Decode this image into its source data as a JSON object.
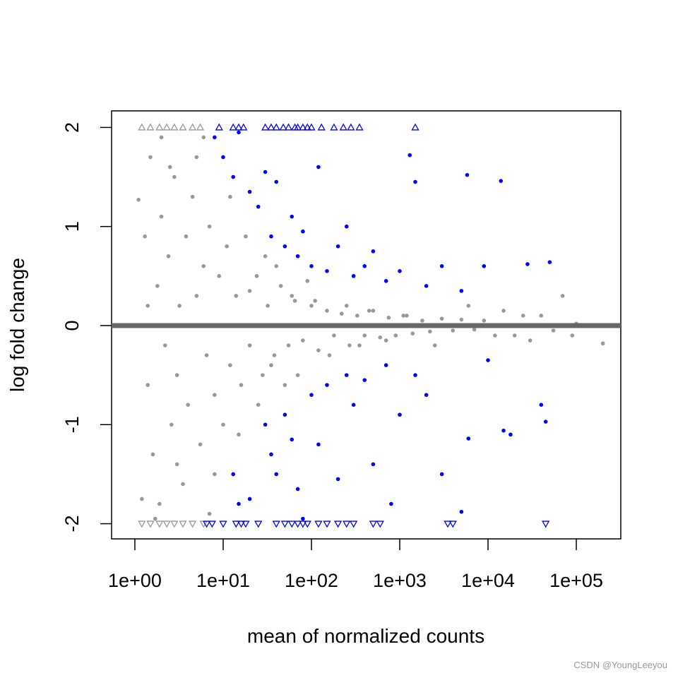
{
  "chart_data": {
    "type": "scatter",
    "x_label": "mean of normalized counts",
    "y_label": "log fold change",
    "watermark": "CSDN @YoungLeeyou",
    "x_log": true,
    "xlim": [
      0.545,
      319000
    ],
    "ylim": [
      -2.153,
      2.167
    ],
    "xticks": [
      {
        "value": 1,
        "label": "1e+00"
      },
      {
        "value": 10,
        "label": "1e+01"
      },
      {
        "value": 100,
        "label": "1e+02"
      },
      {
        "value": 1000,
        "label": "1e+03"
      },
      {
        "value": 10000,
        "label": "1e+04"
      },
      {
        "value": 100000,
        "label": "1e+05"
      }
    ],
    "yticks": [
      -2,
      -1,
      0,
      1,
      2
    ],
    "hline": {
      "value": 0,
      "color": "#666666"
    },
    "series": [
      {
        "color": "#999999",
        "marker": "circle",
        "x": [
          1.1,
          1.3,
          1.4,
          1.5,
          1.6,
          1.8,
          1.9,
          2.0,
          2.2,
          2.4,
          2.6,
          2.8,
          3.0,
          3.2,
          3.5,
          3.8,
          4.0,
          4.5,
          5.0,
          5.5,
          6.0,
          6.5,
          7.0,
          8.0,
          9.0,
          10,
          11,
          12,
          14,
          16,
          18,
          20,
          24,
          28,
          32,
          38,
          45,
          55,
          65,
          80,
          100,
          120,
          150,
          180,
          220,
          270,
          330,
          400,
          500,
          600,
          750,
          900,
          1100,
          1400,
          1800,
          2200,
          3000,
          4000,
          5000,
          7000,
          9000,
          12000,
          15000,
          20000,
          25000,
          30000,
          40000,
          55000,
          70000,
          90000,
          200000,
          100000,
          1.2,
          2.0,
          1.7,
          2.5,
          3.0,
          1.4,
          6,
          8,
          12,
          15,
          5,
          7,
          30,
          25,
          50,
          40,
          70,
          90,
          20,
          35,
          60,
          110,
          160,
          250,
          350,
          450,
          700,
          1200,
          2500,
          6000
        ],
        "values": [
          1.27,
          0.9,
          -0.6,
          1.7,
          -1.3,
          0.4,
          -1.8,
          1.1,
          -0.2,
          0.7,
          -1.0,
          1.5,
          -0.5,
          0.2,
          -1.6,
          0.9,
          -0.8,
          1.3,
          0.3,
          -1.2,
          0.6,
          -0.3,
          1.0,
          -0.7,
          0.5,
          -1.0,
          0.8,
          -0.4,
          0.3,
          -0.6,
          0.9,
          -0.2,
          0.5,
          -0.5,
          0.2,
          -0.3,
          0.4,
          -0.2,
          0.25,
          -0.15,
          0.2,
          -0.25,
          0.15,
          -0.1,
          0.12,
          -0.2,
          0.1,
          -0.1,
          0.15,
          -0.12,
          0.08,
          -0.1,
          0.1,
          -0.08,
          0.05,
          -0.06,
          0.07,
          -0.05,
          0.06,
          -0.04,
          0.05,
          -0.1,
          0.15,
          -0.1,
          0.1,
          -0.15,
          0.1,
          -0.05,
          0.3,
          -0.1,
          -0.18,
          0.02,
          -1.75,
          1.9,
          -1.95,
          1.6,
          -1.4,
          0.2,
          1.9,
          -1.5,
          1.3,
          -1.1,
          1.7,
          -1.9,
          0.7,
          -0.8,
          -0.6,
          0.6,
          -0.5,
          0.45,
          0.35,
          -0.4,
          0.3,
          0.25,
          -0.3,
          0.2,
          -0.2,
          0.15,
          -0.15,
          0.1,
          -0.2,
          0.2
        ]
      },
      {
        "color": "#0000ff",
        "marker": "circle",
        "x": [
          8,
          10,
          13,
          15,
          20,
          25,
          30,
          35,
          40,
          50,
          60,
          70,
          80,
          100,
          120,
          150,
          200,
          250,
          300,
          400,
          500,
          700,
          1000,
          1300,
          1500,
          2000,
          3000,
          5000,
          5800,
          14000,
          9000,
          28000,
          50000,
          13,
          15,
          20,
          30,
          35,
          40,
          50,
          60,
          70,
          80,
          100,
          120,
          150,
          200,
          250,
          300,
          400,
          500,
          700,
          800,
          1000,
          1500,
          2000,
          3000,
          5000,
          6000,
          10000,
          15000,
          18000,
          40000,
          45000
        ],
        "values": [
          1.9,
          1.7,
          1.5,
          1.95,
          1.35,
          1.2,
          1.55,
          0.9,
          1.45,
          0.8,
          1.1,
          0.7,
          0.95,
          0.6,
          1.6,
          0.55,
          0.8,
          1.0,
          0.5,
          0.6,
          0.75,
          0.45,
          0.55,
          1.72,
          1.45,
          0.4,
          0.6,
          0.35,
          1.52,
          1.46,
          0.6,
          0.62,
          0.64,
          -1.5,
          -1.8,
          -1.75,
          -1.0,
          -1.3,
          -1.5,
          -0.9,
          -1.15,
          -1.65,
          -1.95,
          -0.7,
          -1.2,
          -0.6,
          -1.55,
          -0.5,
          -0.8,
          -0.55,
          -1.4,
          -0.4,
          -1.8,
          -0.9,
          -0.5,
          -0.7,
          -1.5,
          -1.88,
          -1.14,
          -0.35,
          -1.06,
          -1.1,
          -0.8,
          -0.97
        ]
      },
      {
        "color": "#999999",
        "marker": "triangle-up",
        "x": [
          1.2,
          1.5,
          1.9,
          2.3,
          2.8,
          3.5,
          4.5,
          5.5
        ],
        "values": [
          2,
          2,
          2,
          2,
          2,
          2,
          2,
          2
        ]
      },
      {
        "color": "#0000ff",
        "marker": "triangle-up",
        "x": [
          9,
          13,
          15,
          17,
          30,
          35,
          40,
          48,
          55,
          65,
          70,
          80,
          90,
          100,
          130,
          180,
          230,
          280,
          350,
          1500
        ],
        "values": [
          2,
          2,
          2,
          2,
          2,
          2,
          2,
          2,
          2,
          2,
          2,
          2,
          2,
          2,
          2,
          2,
          2,
          2,
          2,
          2
        ]
      },
      {
        "color": "#999999",
        "marker": "triangle-down",
        "x": [
          1.2,
          1.5,
          1.9,
          2.3,
          2.8,
          3.5,
          4.5,
          6
        ],
        "values": [
          -2,
          -2,
          -2,
          -2,
          -2,
          -2,
          -2,
          -2
        ]
      },
      {
        "color": "#0000ff",
        "marker": "triangle-down",
        "x": [
          6.5,
          7.5,
          10,
          14,
          16,
          18,
          25,
          40,
          50,
          60,
          70,
          80,
          90,
          120,
          150,
          200,
          250,
          300,
          500,
          600,
          3500,
          4000,
          45000
        ],
        "values": [
          -2,
          -2,
          -2,
          -2,
          -2,
          -2,
          -2,
          -2,
          -2,
          -2,
          -2,
          -2,
          -2,
          -2,
          -2,
          -2,
          -2,
          -2,
          -2,
          -2,
          -2,
          -2,
          -2
        ]
      }
    ]
  }
}
